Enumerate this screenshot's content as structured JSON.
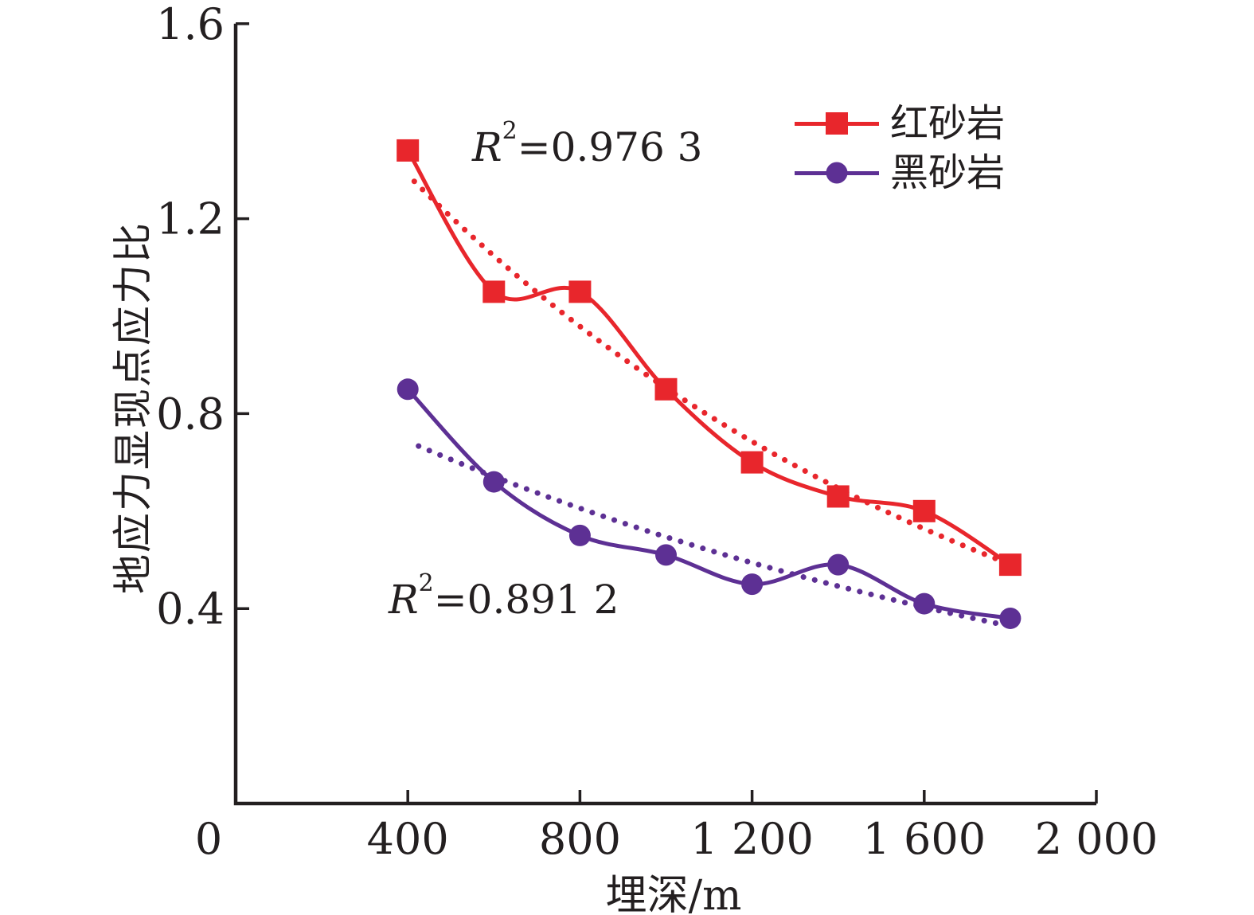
{
  "chart_data": {
    "type": "line",
    "title": "",
    "xlabel": "埋深/m",
    "ylabel": "地应力显现点应力比",
    "xlim": [
      0,
      2000
    ],
    "ylim": [
      0,
      1.6
    ],
    "grid": false,
    "legend_position": "upper right",
    "x_tick_labels": [
      "0",
      "400",
      "800",
      "1 200",
      "1 600",
      "2 000"
    ],
    "x_tick_values": [
      0,
      400,
      800,
      1200,
      1600,
      2000
    ],
    "y_tick_labels": [
      "0.4",
      "0.8",
      "1.2",
      "1.6"
    ],
    "y_tick_values": [
      0.4,
      0.8,
      1.2,
      1.6
    ],
    "x": [
      400,
      600,
      800,
      1000,
      1200,
      1400,
      1600,
      1800
    ],
    "series": [
      {
        "id": "red-sandstone",
        "name": "红砂岩",
        "color": "#e8262c",
        "marker": "square",
        "values": [
          1.34,
          1.05,
          1.05,
          0.85,
          0.7,
          0.63,
          0.6,
          0.49
        ],
        "trendline": {
          "style": "dotted",
          "model": "exponential",
          "a": 1.7,
          "k": -0.00069,
          "x_range": [
            415,
            1775
          ],
          "r_squared": "0.976 3"
        }
      },
      {
        "id": "black-sandstone",
        "name": "黑砂岩",
        "color": "#5d3094",
        "marker": "circle",
        "values": [
          0.85,
          0.66,
          0.55,
          0.51,
          0.45,
          0.49,
          0.41,
          0.38
        ],
        "trendline": {
          "style": "dotted",
          "model": "exponential",
          "a": 0.911,
          "k": -0.00051,
          "x_range": [
            425,
            1772
          ],
          "r_squared": "0.891 2"
        }
      }
    ]
  },
  "annotations": [
    {
      "var": "R",
      "sup": "2",
      "rest": "=0.976 3",
      "series": "红砂岩"
    },
    {
      "var": "R",
      "sup": "2",
      "rest": "=0.891 2",
      "series": "黑砂岩"
    }
  ]
}
